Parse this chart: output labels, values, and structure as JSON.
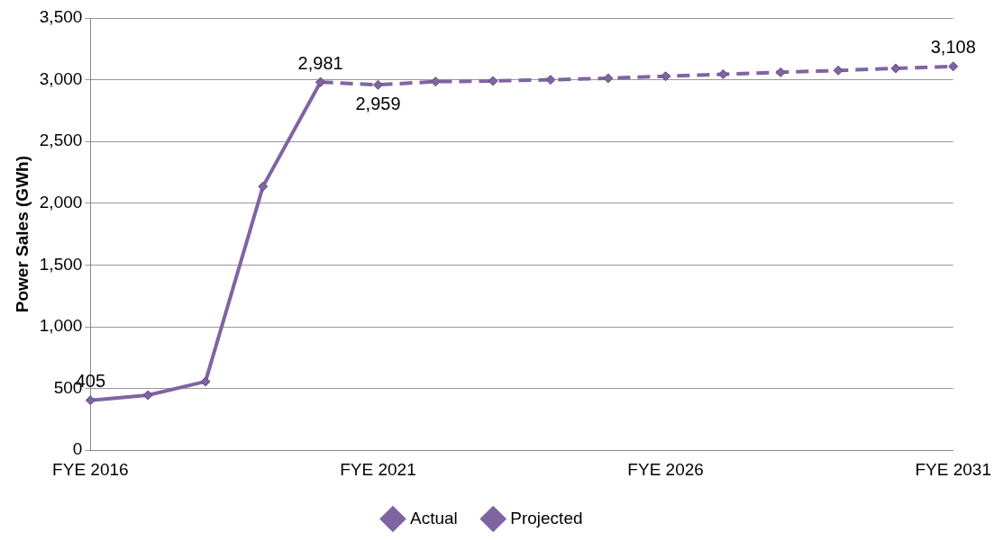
{
  "chart_data": {
    "type": "line",
    "ylabel": "Power Sales (GWh)",
    "categories": [
      "FYE 2016",
      null,
      null,
      null,
      null,
      "FYE 2021",
      null,
      null,
      null,
      null,
      "FYE 2026",
      null,
      null,
      null,
      null,
      "FYE 2031"
    ],
    "series": [
      {
        "name": "Actual",
        "color": "#8064a2",
        "line_style": "solid",
        "values": [
          405,
          446,
          556,
          2136,
          2981,
          null,
          null,
          null,
          null,
          null,
          null,
          null,
          null,
          null,
          null,
          null
        ],
        "value_labels": [
          "405",
          null,
          null,
          null,
          "2,981",
          null,
          null,
          null,
          null,
          null,
          null,
          null,
          null,
          null,
          null,
          null
        ]
      },
      {
        "name": "Projected",
        "color": "#8064a2",
        "line_style": "dashed",
        "values": [
          null,
          null,
          null,
          null,
          2981,
          2959,
          2985,
          2990,
          3000,
          3012,
          3028,
          3045,
          3060,
          3075,
          3092,
          3108
        ],
        "value_labels": [
          null,
          null,
          null,
          null,
          null,
          "2,959",
          null,
          null,
          null,
          null,
          null,
          null,
          null,
          null,
          null,
          "3,108"
        ]
      }
    ],
    "ylim": [
      0,
      3500
    ],
    "yticks": [
      {
        "value": 0,
        "label": "0"
      },
      {
        "value": 500,
        "label": "500"
      },
      {
        "value": 1000,
        "label": "1,000"
      },
      {
        "value": 1500,
        "label": "1,500"
      },
      {
        "value": 2000,
        "label": "2,000"
      },
      {
        "value": 2500,
        "label": "2,500"
      },
      {
        "value": 3000,
        "label": "3,000"
      },
      {
        "value": 3500,
        "label": "3,500"
      }
    ],
    "grid": "y",
    "legend": "bottom",
    "marker": "diamond"
  }
}
